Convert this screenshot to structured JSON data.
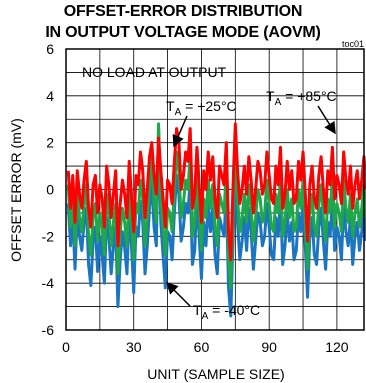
{
  "chart_data": {
    "type": "line",
    "title_line1": "OFFSET-ERROR DISTRIBUTION",
    "title_line2": "IN OUTPUT VOLTAGE MODE (AOVM)",
    "figure_code": "toc01",
    "xlabel": "UNIT (SAMPLE SIZE)",
    "ylabel": "OFFSET ERROR (mV)",
    "xlim": [
      0,
      132
    ],
    "ylim": [
      -6,
      6
    ],
    "xticks": [
      0,
      30,
      60,
      90,
      120
    ],
    "yticks": [
      6,
      4,
      2,
      0,
      -2,
      -4,
      -6
    ],
    "grid": true,
    "annotations": {
      "condition": "NO LOAD AT OUTPUT",
      "label_25": {
        "prefix": "T",
        "sub": "A",
        "suffix": " = +25°C"
      },
      "label_85": {
        "prefix": "T",
        "sub": "A",
        "suffix": " = +85°C"
      },
      "label_m40": {
        "prefix": "T",
        "sub": "A",
        "suffix": " = -40°C"
      }
    },
    "colors": {
      "red": "#ff0000",
      "green": "#1fa84a",
      "blue": "#1b75c0"
    },
    "series": [
      {
        "color": "blue",
        "values": [
          -0.6,
          -2.4,
          -1.2,
          -3.4,
          -1.0,
          -2.0,
          -2.6,
          -1.4,
          -0.8,
          -3.2,
          -4.1,
          -2.2,
          -1.6,
          -3.5,
          -2.0,
          -2.8,
          -4.0,
          -1.2,
          -2.0,
          -3.6,
          -2.4,
          -1.6,
          -5.0,
          -3.0,
          -1.8,
          -2.5,
          -3.6,
          -1.0,
          -2.4,
          -4.4,
          -1.6,
          -2.0,
          -0.5,
          -1.4,
          -3.6,
          -2.4,
          -0.8,
          0.4,
          -1.6,
          -2.4,
          2.6,
          -1.4,
          -2.8,
          -4.2,
          -1.8,
          -2.0,
          -3.0,
          -1.0,
          0.6,
          -0.2,
          -2.2,
          -1.6,
          -0.6,
          -1.0,
          0.4,
          -3.2,
          -2.6,
          -0.4,
          -2.0,
          -3.8,
          -1.4,
          -2.4,
          -0.6,
          -1.8,
          -0.8,
          -2.8,
          -3.6,
          -1.2,
          -1.6,
          -2.0,
          -0.2,
          -4.2,
          -5.4,
          -2.0,
          0.6,
          -1.4,
          -3.0,
          -2.2,
          -1.2,
          -2.6,
          -0.8,
          -1.8,
          -3.4,
          -2.2,
          -1.0,
          -1.4,
          -2.4,
          -2.0,
          -0.6,
          -1.6,
          -2.8,
          -3.0,
          -1.2,
          -2.0,
          -0.4,
          -3.2,
          -2.4,
          -1.0,
          -2.2,
          -1.4,
          -3.0,
          -2.6,
          -1.0,
          -1.8,
          -0.6,
          -2.4,
          -4.6,
          -2.0,
          -1.2,
          -2.8,
          -3.2,
          -1.6,
          -0.8,
          -2.2,
          -3.4,
          -1.4,
          -2.0,
          -0.4,
          -2.6,
          -1.6,
          -2.0,
          -3.0,
          -0.6,
          -1.8,
          -2.4,
          -1.2,
          -3.2,
          -2.0,
          -1.4,
          -2.6,
          -1.8,
          -0.8,
          -2.2
        ]
      },
      {
        "color": "green",
        "values": [
          0.2,
          -1.6,
          -0.4,
          -2.4,
          -0.2,
          -1.2,
          -1.8,
          -0.6,
          0.2,
          -2.0,
          -2.8,
          -1.2,
          -0.6,
          -2.2,
          -1.0,
          -1.6,
          -2.8,
          -0.2,
          -1.0,
          -2.4,
          -1.4,
          -0.6,
          -3.6,
          -1.8,
          -0.8,
          -1.4,
          -2.4,
          0.0,
          -1.4,
          -3.0,
          -0.6,
          -1.0,
          0.4,
          -0.4,
          -2.4,
          -1.2,
          0.2,
          1.4,
          -0.6,
          -1.4,
          2.8,
          -0.4,
          -1.6,
          -2.8,
          -0.8,
          -1.0,
          -1.8,
          0.0,
          1.6,
          0.8,
          -1.2,
          -0.6,
          0.4,
          0.0,
          1.4,
          -2.0,
          -1.4,
          0.6,
          -1.0,
          -2.6,
          -0.4,
          -1.2,
          0.4,
          -0.8,
          0.2,
          -1.6,
          -2.4,
          -0.2,
          -0.6,
          -1.0,
          0.8,
          -3.0,
          -4.2,
          -1.0,
          1.6,
          -0.4,
          -1.8,
          -1.2,
          -0.2,
          -1.4,
          0.2,
          -0.8,
          -2.2,
          -1.2,
          0.0,
          -0.4,
          -1.4,
          -1.0,
          0.4,
          -0.6,
          -1.6,
          -1.8,
          -0.2,
          -1.0,
          0.6,
          -2.0,
          -1.4,
          0.0,
          -1.2,
          -0.4,
          -1.8,
          -1.6,
          0.0,
          -0.8,
          0.4,
          -1.4,
          -3.4,
          -1.0,
          -0.2,
          -1.6,
          -2.0,
          -0.6,
          0.2,
          -1.2,
          -2.2,
          -0.4,
          -1.0,
          0.6,
          -1.6,
          -0.6,
          -1.0,
          -1.8,
          0.4,
          -0.8,
          -1.4,
          -0.2,
          -2.0,
          -1.0,
          -0.4,
          -1.6,
          -0.8,
          0.2,
          -1.2
        ]
      },
      {
        "color": "red",
        "values": [
          0.8,
          -0.8,
          0.6,
          -1.4,
          0.8,
          -0.2,
          -0.8,
          0.4,
          1.2,
          -0.8,
          -1.6,
          0.2,
          0.6,
          -1.0,
          0.2,
          -0.4,
          -1.6,
          1.0,
          0.2,
          -1.2,
          -0.2,
          0.8,
          -2.4,
          -0.6,
          0.4,
          -0.2,
          -1.2,
          1.2,
          -0.2,
          -1.8,
          0.6,
          0.2,
          1.6,
          0.8,
          -1.2,
          0.0,
          1.4,
          2.0,
          0.6,
          -0.2,
          2.2,
          0.8,
          -0.4,
          -1.6,
          0.4,
          0.2,
          -0.6,
          1.2,
          2.6,
          2.0,
          0.0,
          0.6,
          1.6,
          1.2,
          2.6,
          -0.8,
          -0.2,
          1.8,
          0.2,
          -1.4,
          0.8,
          0.0,
          1.6,
          0.4,
          1.4,
          -0.4,
          -1.2,
          1.0,
          0.6,
          0.2,
          2.0,
          -1.8,
          -3.0,
          0.2,
          2.8,
          0.8,
          -0.6,
          0.0,
          1.0,
          -0.2,
          1.4,
          0.4,
          -1.0,
          0.0,
          1.2,
          0.8,
          -0.2,
          0.2,
          1.6,
          0.6,
          -0.4,
          -0.6,
          1.0,
          0.2,
          1.8,
          -0.8,
          -0.2,
          1.2,
          0.0,
          0.8,
          -0.6,
          -0.4,
          1.2,
          0.4,
          1.6,
          -0.2,
          -2.2,
          0.2,
          1.0,
          -0.4,
          -0.8,
          0.6,
          1.4,
          0.0,
          -1.0,
          0.8,
          0.2,
          1.8,
          -0.4,
          0.6,
          0.2,
          -0.6,
          1.6,
          0.4,
          -0.2,
          1.0,
          -0.8,
          0.2,
          0.8,
          -0.4,
          0.4,
          1.4,
          0.0
        ]
      }
    ]
  }
}
